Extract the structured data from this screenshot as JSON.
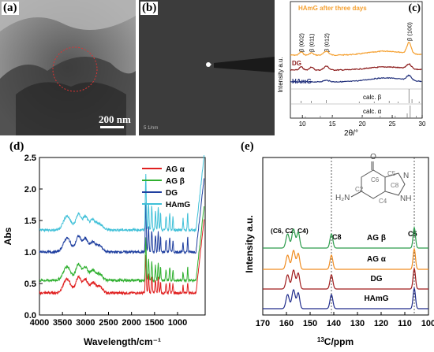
{
  "panels": {
    "a": {
      "label": "(a)",
      "scale_bar": "200 nm"
    },
    "b": {
      "label": "(b)",
      "scale_bar": "5 1/nm"
    },
    "c": {
      "label": "(c)",
      "title": "HAmG after three days",
      "xlabel": "2θ/°",
      "ylabel": "Intensity a.u.",
      "xticks": [
        "10",
        "15",
        "20",
        "25",
        "30"
      ],
      "peaks": [
        "β (002)",
        "β (011)",
        "β (012)",
        "β (100)"
      ],
      "traces": [
        "DG",
        "HAmG",
        "calc. β",
        "calc. α"
      ]
    },
    "d": {
      "label": "(d)",
      "xlabel": "Wavelength/cm⁻¹",
      "ylabel": "Abs",
      "xticks": [
        "4000",
        "3500",
        "3000",
        "2500",
        "2000",
        "1500",
        "1000"
      ],
      "yticks": [
        "0.0",
        "0.5",
        "1.0",
        "1.5",
        "2.0",
        "2.5"
      ]
    },
    "e": {
      "label": "(e)",
      "xlabel": "C/ppm",
      "xlabel_sup": "13",
      "ylabel": "Intensity a.u.",
      "xticks": [
        "170",
        "160",
        "150",
        "140",
        "130",
        "120",
        "110",
        "100"
      ],
      "peak_labels": [
        "(C6, C2, C4)",
        "C8",
        "C5"
      ],
      "atoms": {
        "O": "O",
        "C6": "C6",
        "C5": "C5",
        "N": "N",
        "C2": "C2",
        "C8": "C8",
        "NH2": "H₂N",
        "C4": "C4",
        "NH": "NH"
      },
      "traces": [
        "AG β",
        "AG α",
        "DG",
        "HAmG"
      ]
    }
  },
  "chart_data": [
    {
      "type": "line",
      "panel": "c",
      "title": "HAmG after three days",
      "xlabel": "2θ/°",
      "ylabel": "Intensity a.u.",
      "xlim": [
        8,
        30
      ],
      "series": [
        {
          "name": "HAmG after three days",
          "color": "#f5a030"
        },
        {
          "name": "DG",
          "color": "#8b1a1a"
        },
        {
          "name": "HAmG",
          "color": "#1f2e7a"
        },
        {
          "name": "calc. β",
          "color": "#888888"
        },
        {
          "name": "calc. α",
          "color": "#888888"
        }
      ],
      "peak_positions": [
        {
          "label": "β (002)",
          "x": 9.8
        },
        {
          "label": "β (011)",
          "x": 11.5
        },
        {
          "label": "β (012)",
          "x": 14.0
        },
        {
          "label": "β (100)",
          "x": 27.8
        }
      ]
    },
    {
      "type": "line",
      "panel": "d",
      "xlabel": "Wavelength/cm⁻¹",
      "ylabel": "Abs",
      "xlim": [
        4000,
        400
      ],
      "ylim": [
        0,
        2.5
      ],
      "legend": "top-right",
      "series": [
        {
          "name": "AG α",
          "color": "#e02020",
          "baseline": 0.35
        },
        {
          "name": "AG β",
          "color": "#30b030",
          "baseline": 0.55
        },
        {
          "name": "DG",
          "color": "#2040a0",
          "baseline": 1.0
        },
        {
          "name": "HAmG",
          "color": "#40c0d8",
          "baseline": 1.35
        }
      ]
    },
    {
      "type": "line",
      "panel": "e",
      "xlabel": "13C/ppm",
      "ylabel": "Intensity a.u.",
      "xlim": [
        170,
        100
      ],
      "series": [
        {
          "name": "AG β",
          "color": "#2c9c4c"
        },
        {
          "name": "AG α",
          "color": "#f08c20"
        },
        {
          "name": "DG",
          "color": "#a01c1c"
        },
        {
          "name": "HAmG",
          "color": "#202c8c"
        }
      ],
      "peak_positions": [
        {
          "label": "C6",
          "x": 159
        },
        {
          "label": "C2",
          "x": 157
        },
        {
          "label": "C4",
          "x": 155
        },
        {
          "label": "C8",
          "x": 141
        },
        {
          "label": "C5",
          "x": 106
        }
      ]
    }
  ]
}
